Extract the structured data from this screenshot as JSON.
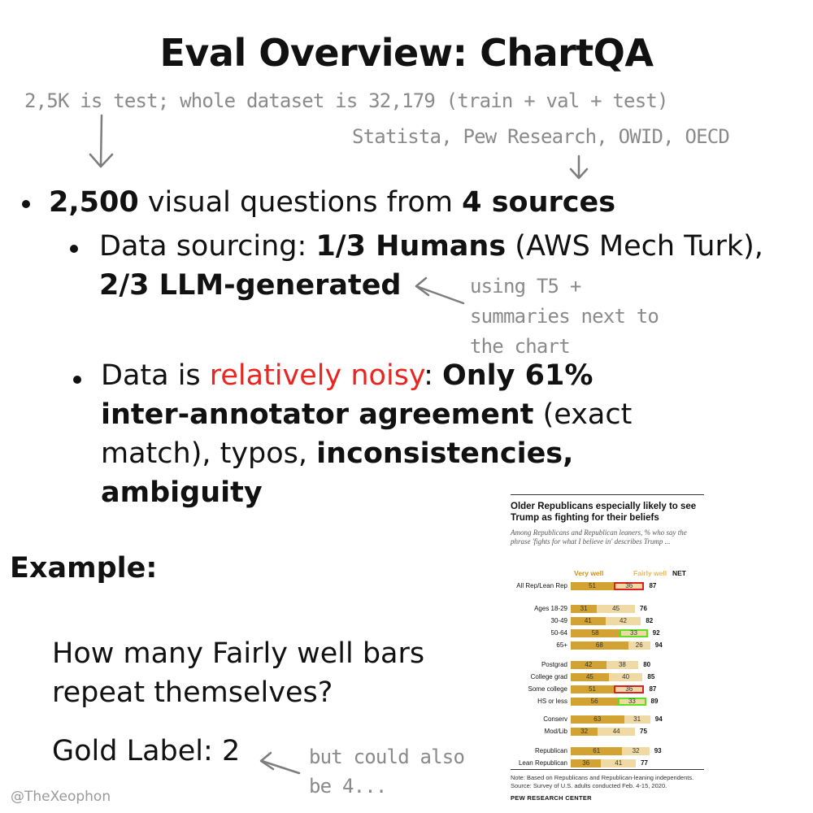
{
  "title": "Eval Overview: ChartQA",
  "annotations": {
    "test_note": "2,5K is test; whole dataset is 32,179 (train + val + test)",
    "sources_note": "Statista, Pew Research, OWID, OECD",
    "llm_note": [
      "using T5 +",
      "summaries next to",
      "the chart"
    ],
    "gold_note": [
      "but could also",
      "be 4..."
    ]
  },
  "bullets": {
    "b1": {
      "num": "2,500",
      "mid": " visual questions from ",
      "bold": "4 sources"
    },
    "b2": {
      "pre": "Data sourcing: ",
      "bold1": "1/3 Humans",
      "mid": " (AWS Mech Turk),",
      "bold2": "2/3 LLM-generated"
    },
    "b3": {
      "pre": "Data is ",
      "red": "relatively noisy",
      "colon": ": ",
      "bold1": "Only 61%",
      "bold2": "inter-annotator agreement",
      "mid": " (exact",
      "mid2": "match), typos, ",
      "bold3": "inconsistencies,",
      "bold4": "ambiguity"
    }
  },
  "example": {
    "heading": "Example:",
    "question_lines": [
      "How many Fairly well bars",
      "repeat themselves?"
    ],
    "gold_label": "Gold Label: 2"
  },
  "handle": "@TheXeophon",
  "colors": {
    "very_well": "#d2a332",
    "fairly_well": "#efdaa6",
    "noisy": "#e8251f",
    "highlight_red": "#e02020",
    "highlight_green": "#5fe01c"
  },
  "chart_data": {
    "type": "bar",
    "title": "Older Republicans especially likely to see Trump as fighting for their beliefs",
    "subtitle": "Among Republicans and Republican leaners, % who say the phrase 'fights for what I believe in' describes Trump ...",
    "legend": [
      "Very well",
      "Fairly well",
      "NET"
    ],
    "categories": [
      "All Rep/Lean Rep",
      "Ages 18-29",
      "30-49",
      "50-64",
      "65+",
      "Postgrad",
      "College grad",
      "Some college",
      "HS or less",
      "Conserv",
      "Mod/Lib",
      "Republican",
      "Lean Republican"
    ],
    "series": [
      {
        "name": "Very well",
        "values": [
          51,
          31,
          41,
          58,
          68,
          42,
          45,
          51,
          56,
          63,
          32,
          61,
          36
        ]
      },
      {
        "name": "Fairly well",
        "values": [
          36,
          45,
          42,
          33,
          26,
          38,
          40,
          36,
          33,
          31,
          44,
          32,
          41
        ]
      }
    ],
    "net": [
      87,
      76,
      82,
      92,
      94,
      80,
      85,
      87,
      89,
      94,
      75,
      93,
      77
    ],
    "highlight_red": [
      0,
      7
    ],
    "highlight_green": [
      3,
      8
    ],
    "note": "Note: Based on Republicans and Republican-leaning independents.",
    "source": "Source: Survey of U.S. adults conducted Feb. 4-15, 2020.",
    "brand": "PEW RESEARCH CENTER"
  }
}
